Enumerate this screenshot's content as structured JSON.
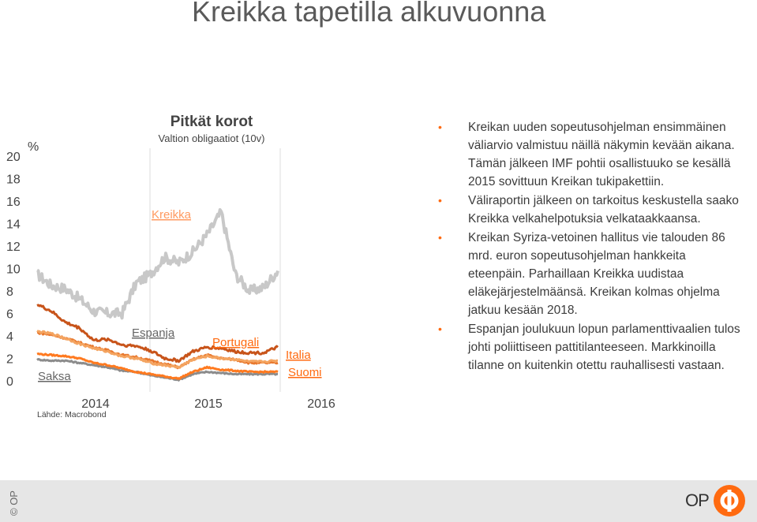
{
  "page": {
    "title": "Kreikka tapetilla alkuvuonna"
  },
  "chart": {
    "title": "Pitkät korot",
    "subtitle": "Valtion obligaatiot (10v)",
    "unit": "%",
    "source": "Lähde: Macrobond",
    "yticks": [
      "20",
      "18",
      "16",
      "14",
      "12",
      "10",
      "8",
      "6",
      "4",
      "2",
      "0"
    ],
    "xticks": [
      "2014",
      "2015",
      "2016"
    ],
    "labels": {
      "kreikka": "Kreikka",
      "espanja": "Espanja",
      "portugali": "Portugali",
      "italia": "Italia",
      "suomi": "Suomi",
      "saksa": "Saksa"
    },
    "colors": {
      "kreikka": "#c8c8c8",
      "portugali": "#c8541a",
      "espanja": "#f4a460",
      "italia": "#e8782e",
      "suomi": "#ff7a20",
      "saksa": "#8c8c8c",
      "label": "#ff6a10"
    }
  },
  "chart_data": {
    "type": "line",
    "title": "Pitkät korot",
    "subtitle": "Valtion obligaatiot (10v)",
    "ylabel": "%",
    "ylim": [
      0,
      20
    ],
    "x": [
      "2013-09",
      "2013-11",
      "2014-01",
      "2014-03",
      "2014-05",
      "2014-07",
      "2014-09",
      "2014-11",
      "2015-01",
      "2015-02",
      "2015-03",
      "2015-05",
      "2015-06",
      "2015-07",
      "2015-08",
      "2015-10",
      "2015-12",
      "2016-01"
    ],
    "series": [
      {
        "name": "Kreikka",
        "values": [
          9.5,
          8.5,
          8.2,
          7.3,
          6.2,
          6.0,
          6.0,
          8.7,
          9.5,
          11.0,
          10.5,
          11.5,
          13.0,
          15.0,
          9.5,
          8.0,
          8.3,
          9.8
        ]
      },
      {
        "name": "Portugali",
        "values": [
          6.8,
          6.2,
          5.2,
          4.7,
          3.6,
          3.7,
          3.2,
          3.1,
          2.7,
          2.0,
          1.8,
          2.6,
          3.0,
          2.9,
          2.6,
          2.5,
          2.5,
          3.0
        ]
      },
      {
        "name": "Espanja",
        "values": [
          4.4,
          4.2,
          3.8,
          3.3,
          2.9,
          2.6,
          2.2,
          2.0,
          1.6,
          1.4,
          1.2,
          1.9,
          2.2,
          2.0,
          1.9,
          1.7,
          1.7,
          1.8
        ]
      },
      {
        "name": "Italia",
        "values": [
          4.3,
          4.1,
          3.8,
          3.4,
          3.0,
          2.7,
          2.3,
          2.1,
          1.8,
          1.5,
          1.2,
          1.9,
          2.3,
          2.0,
          1.9,
          1.6,
          1.6,
          1.6
        ]
      },
      {
        "name": "Suomi",
        "values": [
          2.4,
          2.3,
          2.2,
          2.0,
          1.6,
          1.4,
          1.1,
          0.8,
          0.6,
          0.4,
          0.2,
          0.8,
          1.2,
          1.0,
          0.9,
          0.8,
          0.8,
          0.8
        ]
      },
      {
        "name": "Saksa",
        "values": [
          1.9,
          1.8,
          1.8,
          1.6,
          1.4,
          1.2,
          0.9,
          0.8,
          0.5,
          0.3,
          0.1,
          0.6,
          0.8,
          0.7,
          0.6,
          0.6,
          0.6,
          0.6
        ]
      }
    ]
  },
  "bullets": [
    "Kreikan uuden sopeutusohjelman ensimmäinen väliarvio valmistuu näillä näkymin kevään aikana. Tämän jälkeen IMF pohtii osallistuuko se kesällä 2015 sovittuun Kreikan tukipakettiin.",
    "Väliraportin jälkeen on tarkoitus keskustella saako Kreikka velkahelpotuksia velkataakkaansa.",
    "Kreikan Syriza-vetoinen hallitus vie talouden 86 mrd. euron sopeutusohjelman hankkeita eteenpäin. Parhaillaan Kreikka uudistaa eläkejärjestelmäänsä. Kreikan kolmas ohjelma jatkuu kesään 2018.",
    "Espanjan joulukuun lopun parlamenttivaalien tulos johti poliittiseen pattitilanteeseen. Markkinoilla tilanne on kuitenkin otettu rauhallisesti vastaan."
  ],
  "footer": {
    "copyright": "© OP",
    "logo_text": "OP",
    "logo_color": "#ff6a10"
  }
}
